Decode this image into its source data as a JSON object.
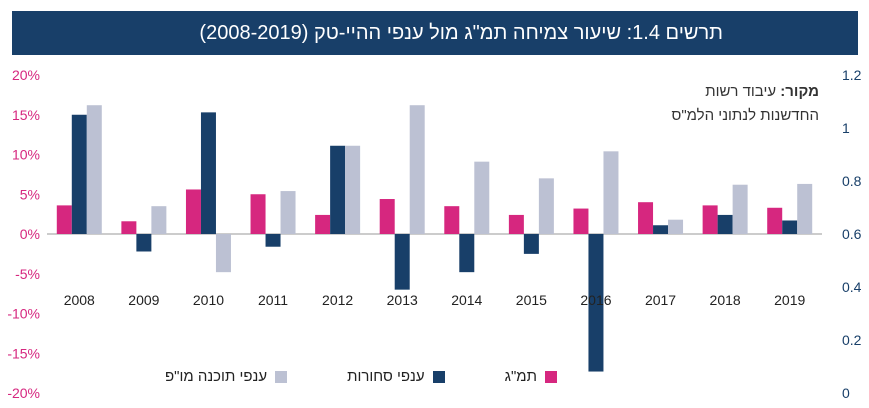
{
  "title": "תרשים 1.4: שיעור צמיחה תמ\"ג מול ענפי ההיי-טק (2008-2019)",
  "source": {
    "label": "מקור:",
    "line1": "עיבוד רשות",
    "line2": "החדשנות לנתוני הלמ\"ס"
  },
  "chart_data": {
    "type": "bar",
    "categories": [
      "2008",
      "2009",
      "2010",
      "2011",
      "2012",
      "2013",
      "2014",
      "2015",
      "2016",
      "2017",
      "2018",
      "2019"
    ],
    "series": [
      {
        "name": "תמ\"ג",
        "color": "#d6277f",
        "axis": "left",
        "values": [
          3.6,
          1.6,
          5.6,
          5.0,
          2.4,
          4.4,
          3.5,
          2.4,
          3.2,
          4.0,
          3.6,
          3.3
        ]
      },
      {
        "name": "ענפי סחורות",
        "color": "#183f69",
        "axis": "left",
        "values": [
          15.0,
          -2.2,
          15.3,
          -1.6,
          11.1,
          -7.0,
          -4.8,
          -2.5,
          -17.3,
          1.1,
          2.4,
          1.7
        ]
      },
      {
        "name": "ענפי תוכנה מו\"פ",
        "color": "#bcc1d3",
        "axis": "left",
        "values": [
          16.2,
          3.5,
          -4.8,
          5.4,
          11.1,
          16.2,
          9.1,
          7.0,
          10.4,
          1.8,
          6.2,
          6.3
        ]
      }
    ],
    "y_left": {
      "min": -20,
      "max": 20,
      "ticks": [
        "20%",
        "15%",
        "10%",
        "5%",
        "0%",
        "-5%",
        "-10%",
        "-15%",
        "-20%"
      ]
    },
    "y_right": {
      "min": 0,
      "max": 1.2,
      "ticks": [
        "1.2",
        "1",
        "0.8",
        "0.6",
        "0.4",
        "0.2",
        "0"
      ]
    },
    "grid": false,
    "legend": "bottom"
  }
}
